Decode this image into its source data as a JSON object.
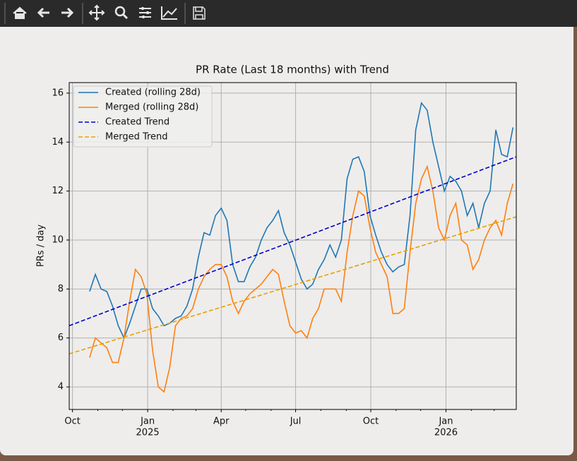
{
  "chart_data": {
    "type": "line",
    "title": "PR Rate (Last 18 months) with Trend",
    "ylabel": "PRs / day",
    "x": [
      "2024-10-22",
      "2024-10-29",
      "2024-11-05",
      "2024-11-12",
      "2024-11-19",
      "2024-11-26",
      "2024-12-03",
      "2024-12-10",
      "2024-12-17",
      "2024-12-24",
      "2024-12-31",
      "2025-01-07",
      "2025-01-14",
      "2025-01-21",
      "2025-01-28",
      "2025-02-04",
      "2025-02-11",
      "2025-02-18",
      "2025-02-25",
      "2025-03-04",
      "2025-03-11",
      "2025-03-18",
      "2025-03-25",
      "2025-04-01",
      "2025-04-08",
      "2025-04-15",
      "2025-04-22",
      "2025-04-29",
      "2025-05-06",
      "2025-05-13",
      "2025-05-20",
      "2025-05-27",
      "2025-06-03",
      "2025-06-10",
      "2025-06-17",
      "2025-06-24",
      "2025-07-01",
      "2025-07-08",
      "2025-07-15",
      "2025-07-22",
      "2025-07-29",
      "2025-08-05",
      "2025-08-12",
      "2025-08-19",
      "2025-08-26",
      "2025-09-02",
      "2025-09-09",
      "2025-09-16",
      "2025-09-23",
      "2025-09-30",
      "2025-10-07",
      "2025-10-14",
      "2025-10-21",
      "2025-10-28",
      "2025-11-04",
      "2025-11-11",
      "2025-11-18",
      "2025-11-25",
      "2025-12-02",
      "2025-12-09",
      "2025-12-16",
      "2025-12-23",
      "2025-12-30",
      "2026-01-06",
      "2026-01-13",
      "2026-01-20",
      "2026-01-27",
      "2026-02-03",
      "2026-02-10",
      "2026-02-17",
      "2026-02-24",
      "2026-03-03",
      "2026-03-10",
      "2026-03-17",
      "2026-03-24"
    ],
    "series": [
      {
        "name": "Created (rolling 28d)",
        "color": "#1f77b4",
        "style": "solid",
        "values": [
          7.9,
          8.6,
          8.0,
          7.9,
          7.3,
          6.5,
          6.0,
          6.6,
          7.3,
          8.0,
          8.0,
          7.2,
          6.9,
          6.5,
          6.6,
          6.8,
          6.9,
          7.3,
          8.0,
          9.3,
          10.3,
          10.2,
          11.0,
          11.3,
          10.8,
          9.0,
          8.3,
          8.3,
          8.9,
          9.3,
          10.0,
          10.5,
          10.8,
          11.2,
          10.3,
          9.8,
          9.1,
          8.4,
          8.0,
          8.2,
          8.8,
          9.2,
          9.8,
          9.3,
          10.0,
          12.5,
          13.3,
          13.4,
          12.8,
          11.0,
          10.2,
          9.5,
          9.0,
          8.7,
          8.9,
          9.0,
          11.0,
          14.5,
          15.6,
          15.3,
          14.0,
          13.0,
          12.0,
          12.6,
          12.4,
          12.0,
          11.0,
          11.5,
          10.5,
          11.5,
          12.0,
          14.5,
          13.5,
          13.4,
          14.6
        ]
      },
      {
        "name": "Merged (rolling 28d)",
        "color": "#ff7f0e",
        "style": "solid",
        "values": [
          5.2,
          6.0,
          5.8,
          5.6,
          5.0,
          5.0,
          6.0,
          7.5,
          8.8,
          8.5,
          7.8,
          5.5,
          4.0,
          3.8,
          4.8,
          6.5,
          6.8,
          6.9,
          7.2,
          8.0,
          8.5,
          8.8,
          9.0,
          9.0,
          8.5,
          7.5,
          7.0,
          7.5,
          7.8,
          8.0,
          8.2,
          8.5,
          8.8,
          8.6,
          7.5,
          6.5,
          6.2,
          6.3,
          6.0,
          6.8,
          7.2,
          8.0,
          8.0,
          8.0,
          7.5,
          9.5,
          11.0,
          12.0,
          11.8,
          10.5,
          9.5,
          9.0,
          8.5,
          7.0,
          7.0,
          7.2,
          9.5,
          11.5,
          12.5,
          13.0,
          12.0,
          10.5,
          10.0,
          11.0,
          11.5,
          10.0,
          9.8,
          8.8,
          9.2,
          10.0,
          10.5,
          10.8,
          10.2,
          11.5,
          12.3
        ]
      },
      {
        "name": "Created Trend",
        "color": "#0000cd",
        "style": "dashed",
        "x": [
          "2024-09-27",
          "2026-03-28"
        ],
        "values": [
          6.5,
          13.4
        ]
      },
      {
        "name": "Merged Trend",
        "color": "#e8a000",
        "style": "dashed",
        "x": [
          "2024-09-27",
          "2026-03-28"
        ],
        "values": [
          5.35,
          10.95
        ]
      }
    ],
    "xlim": [
      "2024-09-27",
      "2026-03-28"
    ],
    "xticks": [
      {
        "value": "2024-10-01",
        "label": "Oct"
      },
      {
        "value": "2025-01-01",
        "label": "Jan",
        "sublabel": "2025"
      },
      {
        "value": "2025-04-01",
        "label": "Apr"
      },
      {
        "value": "2025-07-01",
        "label": "Jul"
      },
      {
        "value": "2025-10-01",
        "label": "Oct"
      },
      {
        "value": "2026-01-01",
        "label": "Jan",
        "sublabel": "2026"
      }
    ],
    "xminorticks": [
      "2024-11-01",
      "2024-12-01",
      "2025-02-01",
      "2025-03-01",
      "2025-05-01",
      "2025-06-01",
      "2025-08-01",
      "2025-09-01",
      "2025-11-01",
      "2025-12-01",
      "2026-02-01",
      "2026-03-01"
    ],
    "ylim": [
      3.08,
      16.43
    ],
    "yticks": [
      4,
      6,
      8,
      10,
      12,
      14,
      16
    ],
    "grid": true,
    "legend": "upper-left"
  }
}
